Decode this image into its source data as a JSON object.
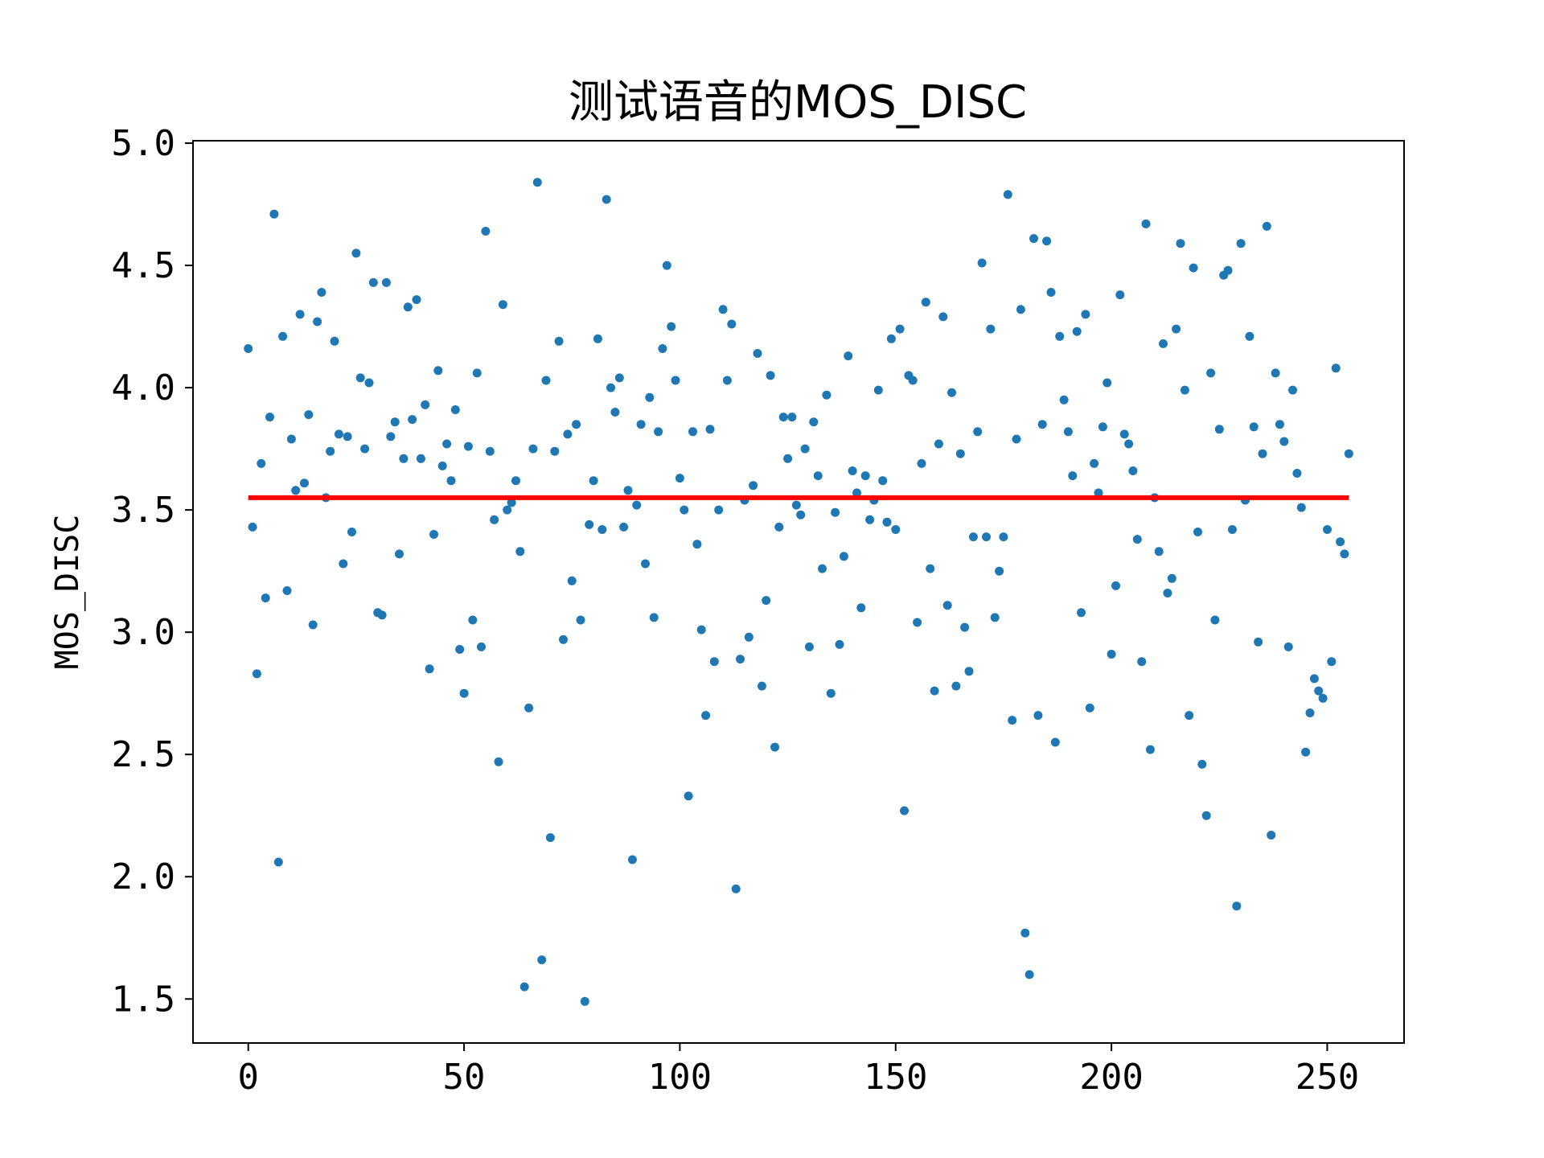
{
  "chart_data": {
    "type": "scatter",
    "title": "测试语音的MOS_DISC",
    "xlabel": "",
    "ylabel": "MOS_DISC",
    "xlim": [
      -12.8,
      267.8
    ],
    "ylim": [
      1.32,
      5.01
    ],
    "x_ticks": [
      0,
      50,
      100,
      150,
      200,
      250
    ],
    "x_tick_labels": [
      "0",
      "50",
      "100",
      "150",
      "200",
      "250"
    ],
    "y_ticks": [
      1.5,
      2.0,
      2.5,
      3.0,
      3.5,
      4.0,
      4.5,
      5.0
    ],
    "y_tick_labels": [
      "1.5",
      "2.0",
      "2.5",
      "3.0",
      "3.5",
      "4.0",
      "4.5",
      "5.0"
    ],
    "grid": false,
    "series": [
      {
        "kind": "scatter",
        "color": "#1f77b4",
        "x": [
          0,
          1,
          2,
          3,
          4,
          5,
          6,
          7,
          8,
          9,
          10,
          11,
          12,
          13,
          14,
          15,
          16,
          17,
          18,
          19,
          20,
          21,
          22,
          23,
          24,
          25,
          26,
          27,
          28,
          29,
          30,
          31,
          32,
          33,
          34,
          35,
          36,
          37,
          38,
          39,
          40,
          41,
          42,
          43,
          44,
          45,
          46,
          47,
          48,
          49,
          50,
          51,
          52,
          53,
          54,
          55,
          56,
          57,
          58,
          59,
          60,
          61,
          62,
          63,
          64,
          65,
          66,
          67,
          68,
          69,
          70,
          71,
          72,
          73,
          74,
          75,
          76,
          77,
          78,
          79,
          80,
          81,
          82,
          83,
          84,
          85,
          86,
          87,
          88,
          89,
          90,
          91,
          92,
          93,
          94,
          95,
          96,
          97,
          98,
          99,
          100,
          101,
          102,
          103,
          104,
          105,
          106,
          107,
          108,
          109,
          110,
          111,
          112,
          113,
          114,
          115,
          116,
          117,
          118,
          119,
          120,
          121,
          122,
          123,
          124,
          125,
          126,
          127,
          128,
          129,
          130,
          131,
          132,
          133,
          134,
          135,
          136,
          137,
          138,
          139,
          140,
          141,
          142,
          143,
          144,
          145,
          146,
          147,
          148,
          149,
          150,
          151,
          152,
          153,
          154,
          155,
          156,
          157,
          158,
          159,
          160,
          161,
          162,
          163,
          164,
          165,
          166,
          167,
          168,
          169,
          170,
          171,
          172,
          173,
          174,
          175,
          176,
          177,
          178,
          179,
          180,
          181,
          182,
          183,
          184,
          185,
          186,
          187,
          188,
          189,
          190,
          191,
          192,
          193,
          194,
          195,
          196,
          197,
          198,
          199,
          200,
          201,
          202,
          203,
          204,
          205,
          206,
          207,
          208,
          209,
          210,
          211,
          212,
          213,
          214,
          215,
          216,
          217,
          218,
          219,
          220,
          221,
          222,
          223,
          224,
          225,
          226,
          227,
          228,
          229,
          230,
          231,
          232,
          233,
          234,
          235,
          236,
          237,
          238,
          239,
          240,
          241,
          242,
          243,
          244,
          245,
          246,
          247,
          248,
          249,
          250,
          251,
          252,
          253,
          254,
          255
        ],
        "y": [
          4.16,
          3.43,
          2.83,
          3.69,
          3.14,
          3.88,
          4.71,
          2.06,
          4.21,
          3.17,
          3.79,
          3.58,
          4.3,
          3.61,
          3.89,
          3.03,
          4.27,
          4.39,
          3.55,
          3.74,
          4.19,
          3.81,
          3.28,
          3.8,
          3.41,
          4.55,
          4.04,
          3.75,
          4.02,
          4.43,
          3.08,
          3.07,
          4.43,
          3.8,
          3.86,
          3.32,
          3.71,
          4.33,
          3.87,
          4.36,
          3.71,
          3.93,
          2.85,
          3.4,
          4.07,
          3.68,
          3.77,
          3.62,
          3.91,
          2.93,
          2.75,
          3.76,
          3.05,
          4.06,
          2.94,
          4.64,
          3.74,
          3.46,
          2.47,
          4.34,
          3.5,
          3.53,
          3.62,
          3.33,
          1.55,
          2.69,
          3.75,
          4.84,
          1.66,
          4.03,
          2.16,
          3.74,
          4.19,
          2.97,
          3.81,
          3.21,
          3.85,
          3.05,
          1.49,
          3.44,
          3.62,
          4.2,
          3.42,
          4.77,
          4.0,
          3.9,
          4.04,
          3.43,
          3.58,
          2.07,
          3.52,
          3.85,
          3.28,
          3.96,
          3.06,
          3.82,
          4.16,
          4.5,
          4.25,
          4.03,
          3.63,
          3.5,
          2.33,
          3.82,
          3.36,
          3.01,
          2.66,
          3.83,
          2.88,
          3.5,
          4.32,
          4.03,
          4.26,
          1.95,
          2.89,
          3.54,
          2.98,
          3.6,
          4.14,
          2.78,
          3.13,
          4.05,
          2.53,
          3.43,
          3.88,
          3.71,
          3.88,
          3.52,
          3.48,
          3.75,
          2.94,
          3.86,
          3.64,
          3.26,
          3.97,
          2.75,
          3.49,
          2.95,
          3.31,
          4.13,
          3.66,
          3.57,
          3.1,
          3.64,
          3.46,
          3.54,
          3.99,
          3.62,
          3.45,
          4.2,
          3.42,
          4.24,
          2.27,
          4.05,
          4.03,
          3.04,
          3.69,
          4.35,
          3.26,
          2.76,
          3.77,
          4.29,
          3.11,
          3.98,
          2.78,
          3.73,
          3.02,
          2.84,
          3.39,
          3.82,
          4.51,
          3.39,
          4.24,
          3.06,
          3.25,
          3.39,
          4.79,
          2.64,
          3.79,
          4.32,
          1.77,
          1.6,
          4.61,
          2.66,
          3.85,
          4.6,
          4.39,
          2.55,
          4.21,
          3.95,
          3.82,
          3.64,
          4.23,
          3.08,
          4.3,
          2.69,
          3.69,
          3.57,
          3.84,
          4.02,
          2.91,
          3.19,
          4.38,
          3.81,
          3.77,
          3.66,
          3.38,
          2.88,
          4.67,
          2.52,
          3.55,
          3.33,
          4.18,
          3.16,
          3.22,
          4.24,
          4.59,
          3.99,
          2.66,
          4.49,
          3.41,
          2.46,
          2.25,
          4.06,
          3.05,
          3.83,
          4.46,
          4.48,
          3.42,
          1.88,
          4.59,
          3.54,
          4.21,
          3.84,
          2.96,
          3.73,
          4.66,
          2.17,
          4.06,
          3.85,
          3.78,
          2.94,
          3.99,
          3.65,
          3.51,
          2.51,
          2.67,
          2.81,
          2.76,
          2.73,
          3.42,
          2.88,
          4.08,
          3.37,
          3.32,
          3.73
        ]
      },
      {
        "kind": "line",
        "color": "#ff0000",
        "x": [
          0,
          255
        ],
        "y": [
          3.55,
          3.55
        ]
      }
    ]
  }
}
